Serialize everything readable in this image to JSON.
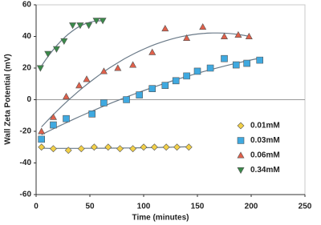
{
  "chart_data": {
    "type": "scatter",
    "xlabel": "Time (minutes)",
    "ylabel": "Wall Zeta Potential (mV)",
    "xlim": [
      0,
      250
    ],
    "xticks": [
      0,
      50,
      100,
      150,
      200,
      250
    ],
    "ylim": [
      -60,
      60
    ],
    "yticks": [
      -60,
      -40,
      -20,
      0,
      20,
      40,
      60
    ],
    "zero_line": true,
    "trend_lines": true,
    "legend": "right",
    "series": [
      {
        "name": "0.01mM",
        "color": "#f2d048",
        "marker": "diamond",
        "x": [
          5,
          16,
          30,
          42,
          54,
          67,
          78,
          90,
          100,
          110,
          121,
          131,
          142
        ],
        "values": [
          -30,
          -31,
          -32,
          -31,
          -30,
          -30,
          -31,
          -31,
          -30,
          -30,
          -30,
          -30,
          -30
        ]
      },
      {
        "name": "0.03mM",
        "color": "#3fa9e0",
        "marker": "square",
        "x": [
          5,
          16,
          28,
          52,
          63,
          84,
          96,
          108,
          120,
          130,
          140,
          150,
          162,
          175,
          186,
          196,
          208
        ],
        "values": [
          -25,
          -16,
          -12,
          -9,
          -2,
          0,
          3,
          7,
          9,
          12,
          15,
          18,
          20,
          26,
          22,
          23,
          25
        ]
      },
      {
        "name": "0.06mM",
        "color": "#e0604a",
        "marker": "triangle",
        "x": [
          5,
          16,
          28,
          40,
          47,
          63,
          76,
          90,
          108,
          120,
          140,
          155,
          175,
          188,
          198
        ],
        "values": [
          -20,
          -11,
          2,
          9,
          13,
          18,
          20,
          22,
          30,
          45,
          39,
          46,
          40,
          41,
          40
        ]
      },
      {
        "name": "0.34mM",
        "color": "#3a8a4a",
        "marker": "triangle-down",
        "x": [
          4,
          11,
          19,
          26,
          34,
          41,
          49,
          56,
          62
        ],
        "values": [
          20,
          29,
          32,
          37,
          47,
          47,
          47,
          50,
          50
        ]
      }
    ]
  }
}
